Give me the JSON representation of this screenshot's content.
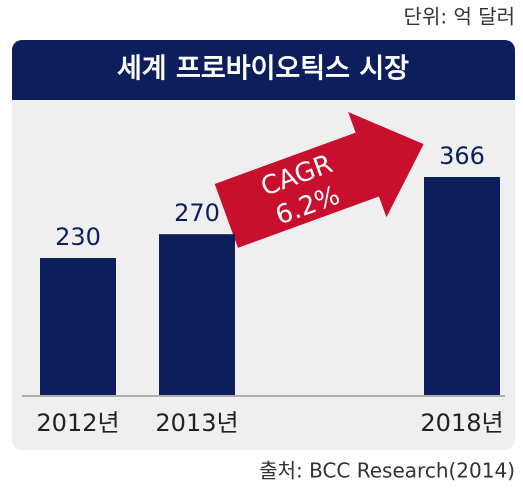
{
  "chart_data": {
    "type": "bar",
    "title": "세계 프로바이오틱스 시장",
    "unit": "단위: 억 달러",
    "source": "출처: BCC Research(2014)",
    "annotation": {
      "line1": "CAGR",
      "line2": "6.2%"
    },
    "categories": [
      "2012년",
      "2013년",
      "2018년"
    ],
    "values": [
      230,
      270,
      366
    ],
    "color": "#0c1f5c"
  }
}
